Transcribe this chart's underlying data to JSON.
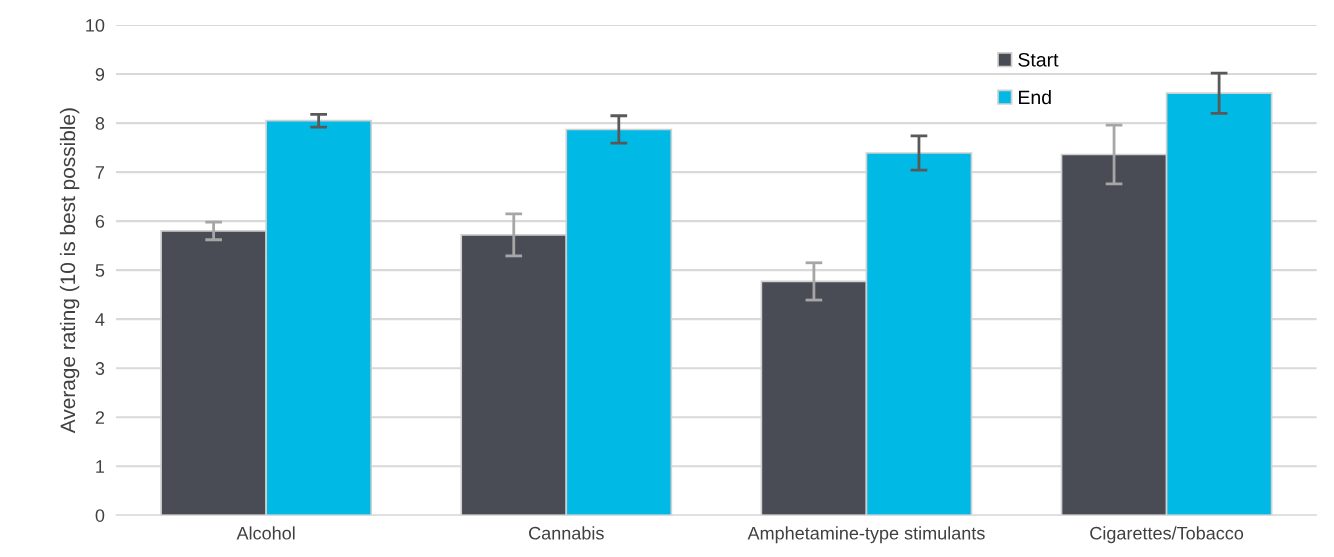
{
  "chart_data": {
    "type": "bar",
    "ylabel": "Average rating (10 is best possible)",
    "categories": [
      "Alcohol",
      "Cannabis",
      "Amphetamine-type stimulants",
      "Cigarettes/Tobacco"
    ],
    "series": [
      {
        "name": "Start",
        "color": "#494c55",
        "values": [
          5.8,
          5.72,
          4.77,
          7.36
        ],
        "errors": [
          0.18,
          0.43,
          0.38,
          0.6
        ]
      },
      {
        "name": "End",
        "color": "#00b9e4",
        "values": [
          8.05,
          7.87,
          7.39,
          8.61
        ],
        "errors": [
          0.13,
          0.28,
          0.35,
          0.41
        ]
      }
    ],
    "ylim": [
      0,
      10
    ],
    "yticks": [
      0,
      1,
      2,
      3,
      4,
      5,
      6,
      7,
      8,
      9,
      10
    ],
    "grid": "y",
    "legend": "top right"
  }
}
